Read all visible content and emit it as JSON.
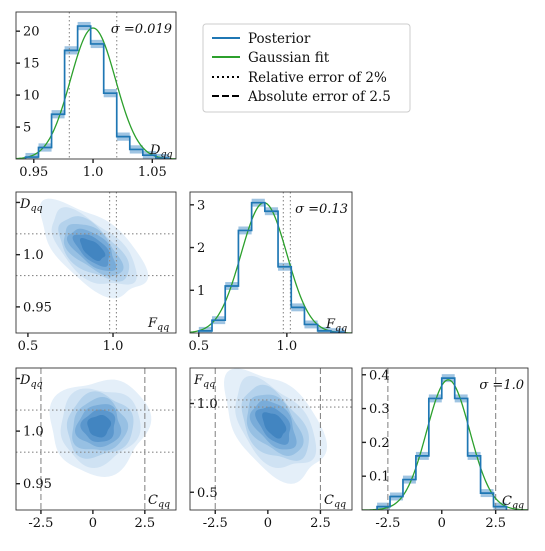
{
  "chart_data": {
    "type": "corner",
    "legend": {
      "position": "top-right",
      "entries": [
        {
          "label": "Posterior",
          "style": "solid",
          "color": "#1f77b4"
        },
        {
          "label": "Gaussian fit",
          "style": "solid",
          "color": "#2ca02c"
        },
        {
          "label": "Relative error of 2%",
          "style": "dotted",
          "color": "#000000"
        },
        {
          "label": "Absolute error of 2.5",
          "style": "dashed",
          "color": "#000000"
        }
      ]
    },
    "colors": {
      "posterior": "#1f77b4",
      "band": "#7fb0d8",
      "fit": "#2ca02c",
      "guide": "#8a8a8a"
    },
    "panels": [
      {
        "id": "D_hist",
        "type": "histogram",
        "param_label": "D",
        "param_sub": "qq",
        "sigma_label": "σ =0.019",
        "xlim": [
          0.935,
          1.07
        ],
        "ylim": [
          0,
          23
        ],
        "xticks": [
          0.95,
          1.0,
          1.05
        ],
        "xtick_labels": [
          "0.95",
          "1.0",
          "1.05"
        ],
        "yticks": [
          5,
          10,
          15,
          20
        ],
        "ytick_labels": [
          "5",
          "10",
          "15",
          "20"
        ],
        "bin_edges": [
          0.943,
          0.954,
          0.965,
          0.976,
          0.987,
          0.998,
          1.009,
          1.02,
          1.031,
          1.042,
          1.053,
          1.064
        ],
        "counts": [
          0.3,
          1.8,
          7.0,
          17.0,
          20.8,
          18.0,
          10.3,
          3.5,
          1.5,
          0.6,
          0.15
        ],
        "fit_mean": 1.0,
        "fit_sigma": 0.019,
        "fit_peak": 20.5,
        "vlines": [
          {
            "x": 0.98,
            "style": "dotted"
          },
          {
            "x": 1.02,
            "style": "dotted"
          }
        ]
      },
      {
        "id": "F_hist",
        "type": "histogram",
        "param_label": "F",
        "param_sub": "qq",
        "sigma_label": "σ =0.13",
        "xlim": [
          0.45,
          1.37
        ],
        "ylim": [
          0,
          3.3
        ],
        "xticks": [
          0.5,
          1.0
        ],
        "xtick_labels": [
          "0.5",
          "1.0"
        ],
        "yticks": [
          1,
          2,
          3
        ],
        "ytick_labels": [
          "1",
          "2",
          "3"
        ],
        "bin_edges": [
          0.5,
          0.575,
          0.65,
          0.725,
          0.8,
          0.875,
          0.95,
          1.025,
          1.1,
          1.175,
          1.25,
          1.325
        ],
        "counts": [
          0.05,
          0.3,
          1.1,
          2.4,
          3.05,
          2.85,
          1.55,
          0.6,
          0.2,
          0.05,
          0.02
        ],
        "fit_mean": 0.87,
        "fit_sigma": 0.13,
        "fit_peak": 3.05,
        "vlines": [
          {
            "x": 0.98,
            "style": "dotted"
          },
          {
            "x": 1.02,
            "style": "dotted"
          }
        ]
      },
      {
        "id": "C_hist",
        "type": "histogram",
        "param_label": "C",
        "param_sub": "qq",
        "sigma_label": "σ =1.0",
        "xlim": [
          -3.7,
          4.0
        ],
        "ylim": [
          0,
          0.42
        ],
        "xticks": [
          -2.5,
          0,
          2.5
        ],
        "xtick_labels": [
          "-2.5",
          "0",
          "2.5"
        ],
        "yticks": [
          0.1,
          0.2,
          0.3,
          0.4
        ],
        "ytick_labels": [
          "0.1",
          "0.2",
          "0.3",
          "0.4"
        ],
        "bin_edges": [
          -3.0,
          -2.4,
          -1.8,
          -1.2,
          -0.6,
          0.0,
          0.6,
          1.2,
          1.8,
          2.4,
          3.0
        ],
        "counts": [
          0.01,
          0.04,
          0.09,
          0.16,
          0.33,
          0.39,
          0.33,
          0.16,
          0.05,
          0.01
        ],
        "fit_mean": 0.3,
        "fit_sigma": 1.0,
        "fit_peak": 0.385,
        "vlines": [
          {
            "x": -2.5,
            "style": "dashed"
          },
          {
            "x": 2.5,
            "style": "dashed"
          }
        ]
      },
      {
        "id": "D_vs_F",
        "type": "kde",
        "x_label": "F",
        "x_sub": "qq",
        "y_label": "D",
        "y_sub": "qq",
        "xlim": [
          0.43,
          1.37
        ],
        "ylim": [
          0.925,
          1.06
        ],
        "xticks": [
          0.5,
          1.0
        ],
        "xtick_labels": [
          "0.5",
          "1.0"
        ],
        "yticks": [
          0.95,
          1.0,
          1.05
        ],
        "ytick_labels": [
          "0.95",
          "1.0",
          ""
        ],
        "mean": [
          0.88,
          1.005
        ],
        "sd": [
          0.13,
          0.019
        ],
        "rho": -0.6,
        "vlines": [
          {
            "x": 0.98,
            "style": "dotted"
          },
          {
            "x": 1.02,
            "style": "dotted"
          }
        ],
        "hlines": [
          {
            "y": 0.98,
            "style": "dotted"
          },
          {
            "y": 1.02,
            "style": "dotted"
          }
        ]
      },
      {
        "id": "D_vs_C",
        "type": "kde",
        "x_label": "C",
        "x_sub": "qq",
        "y_label": "D",
        "y_sub": "qq",
        "xlim": [
          -3.7,
          4.0
        ],
        "ylim": [
          0.925,
          1.06
        ],
        "xticks": [
          -2.5,
          0,
          2.5
        ],
        "xtick_labels": [
          "-2.5",
          "0",
          "2.5"
        ],
        "yticks": [
          0.95,
          1.0,
          1.05
        ],
        "ytick_labels": [
          "0.95",
          "1.0",
          ""
        ],
        "mean": [
          0.3,
          1.005
        ],
        "sd": [
          1.0,
          0.019
        ],
        "rho": 0.05,
        "vlines": [
          {
            "x": -2.5,
            "style": "dashed"
          },
          {
            "x": 2.5,
            "style": "dashed"
          }
        ],
        "hlines": [
          {
            "y": 0.98,
            "style": "dotted"
          },
          {
            "y": 1.02,
            "style": "dotted"
          }
        ]
      },
      {
        "id": "F_vs_C",
        "type": "kde",
        "x_label": "C",
        "x_sub": "qq",
        "y_label": "F",
        "y_sub": "qq",
        "xlim": [
          -3.7,
          4.0
        ],
        "ylim": [
          0.4,
          1.2
        ],
        "xticks": [
          -2.5,
          0,
          2.5
        ],
        "xtick_labels": [
          "-2.5",
          "0",
          "2.5"
        ],
        "yticks": [
          0.5,
          1.0
        ],
        "ytick_labels": [
          "0.5",
          "1.0"
        ],
        "mean": [
          0.3,
          0.88
        ],
        "sd": [
          1.0,
          0.13
        ],
        "rho": -0.45,
        "vlines": [
          {
            "x": -2.5,
            "style": "dashed"
          },
          {
            "x": 2.5,
            "style": "dashed"
          }
        ],
        "hlines": [
          {
            "y": 0.98,
            "style": "dotted"
          },
          {
            "y": 1.02,
            "style": "dotted"
          }
        ]
      }
    ]
  }
}
